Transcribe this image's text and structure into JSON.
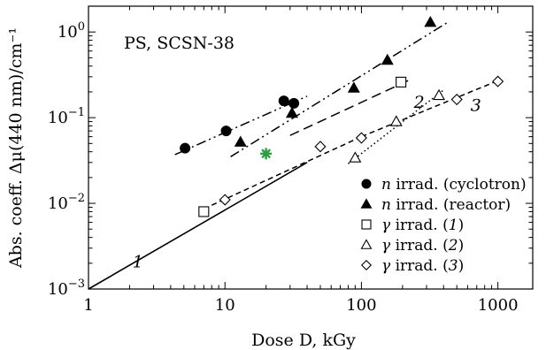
{
  "chart_data": {
    "type": "scatter",
    "x_scale": "log",
    "y_scale": "log",
    "xlim": [
      1,
      1800
    ],
    "ylim": [
      0.001,
      2
    ],
    "xlabel": "Dose D, kGy",
    "ylabel": "Abs. coeff. Δμ(440 nm)/cm⁻¹",
    "x_ticks": [
      {
        "value": 1,
        "label": "1"
      },
      {
        "value": 10,
        "label": "10"
      },
      {
        "value": 100,
        "label": "100"
      },
      {
        "value": 1000,
        "label": "1000"
      }
    ],
    "y_ticks": [
      {
        "value": 0.001,
        "base": "10",
        "exp": "−3"
      },
      {
        "value": 0.01,
        "base": "10",
        "exp": "−2"
      },
      {
        "value": 0.1,
        "base": "10",
        "exp": "−1"
      },
      {
        "value": 1,
        "base": "10",
        "exp": "0"
      }
    ],
    "annotation": "PS, SCSN-38",
    "series": [
      {
        "key": "n_cyclotron",
        "name": "n irrad. (cyclotron)",
        "marker": "circle",
        "fill": "#000000",
        "points": [
          [
            5.1,
            0.044
          ],
          [
            10.2,
            0.07
          ],
          [
            27,
            0.157
          ],
          [
            32,
            0.147
          ]
        ]
      },
      {
        "key": "n_reactor",
        "name": "n irrad. (reactor)",
        "marker": "triangle",
        "fill": "#000000",
        "points": [
          [
            13,
            0.052
          ],
          [
            31,
            0.113
          ],
          [
            88,
            0.222
          ],
          [
            155,
            0.47
          ],
          [
            320,
            1.3
          ]
        ]
      },
      {
        "key": "gamma_1",
        "name": "γ irrad. (1)",
        "marker": "square",
        "fill": "#ffffff",
        "points": [
          [
            7,
            0.008
          ],
          [
            195,
            0.26
          ]
        ]
      },
      {
        "key": "gamma_2",
        "name": "γ irrad. (2)",
        "marker": "triangle",
        "fill": "#ffffff",
        "points": [
          [
            90,
            0.034
          ],
          [
            180,
            0.09
          ],
          [
            370,
            0.182
          ]
        ]
      },
      {
        "key": "gamma_3",
        "name": "γ irrad. (3)",
        "marker": "diamond",
        "fill": "#ffffff",
        "points": [
          [
            10,
            0.011
          ],
          [
            50,
            0.046
          ],
          [
            100,
            0.058
          ],
          [
            500,
            0.163
          ],
          [
            1000,
            0.265
          ]
        ]
      },
      {
        "key": "star",
        "marker": "star",
        "fill": "#2aa040",
        "points": [
          [
            20,
            0.038
          ]
        ]
      }
    ],
    "legend": {
      "position": "bottom-right",
      "order": [
        "n_cyclotron",
        "n_reactor",
        "gamma_1",
        "gamma_2",
        "gamma_3"
      ]
    },
    "lines": [
      {
        "key": "fit_cyclotron",
        "style": "dash-dot-dot",
        "points": [
          [
            4.3,
            0.037
          ],
          [
            40,
            0.178
          ]
        ]
      },
      {
        "key": "fit_reactor",
        "style": "dash-dot-dot",
        "points": [
          [
            11,
            0.035
          ],
          [
            430,
            1.3
          ]
        ]
      },
      {
        "key": "fit_gamma_1_upper",
        "style": "dashed",
        "points": [
          [
            30,
            0.062
          ],
          [
            230,
            0.28
          ]
        ]
      },
      {
        "key": "fit_gamma_1_lower",
        "style": "solid",
        "points": [
          [
            1,
            0.001
          ],
          [
            40,
            0.03
          ]
        ]
      },
      {
        "key": "fit_gamma_2",
        "style": "dotted",
        "points": [
          [
            80,
            0.029
          ],
          [
            400,
            0.21
          ]
        ]
      },
      {
        "key": "fit_gamma_3_low",
        "style": "short-dashed",
        "points": [
          [
            8,
            0.0095
          ],
          [
            100,
            0.06
          ]
        ]
      },
      {
        "key": "fit_gamma_3_high",
        "style": "short-dashed",
        "points": [
          [
            100,
            0.06
          ],
          [
            1000,
            0.27
          ]
        ]
      }
    ],
    "curve_labels": [
      {
        "key": "label_1",
        "text": "1",
        "x": 2.3,
        "y": 0.0018
      },
      {
        "key": "label_2",
        "text": "2",
        "x": 265,
        "y": 0.13
      },
      {
        "key": "label_3",
        "text": "3",
        "x": 690,
        "y": 0.12
      }
    ]
  }
}
